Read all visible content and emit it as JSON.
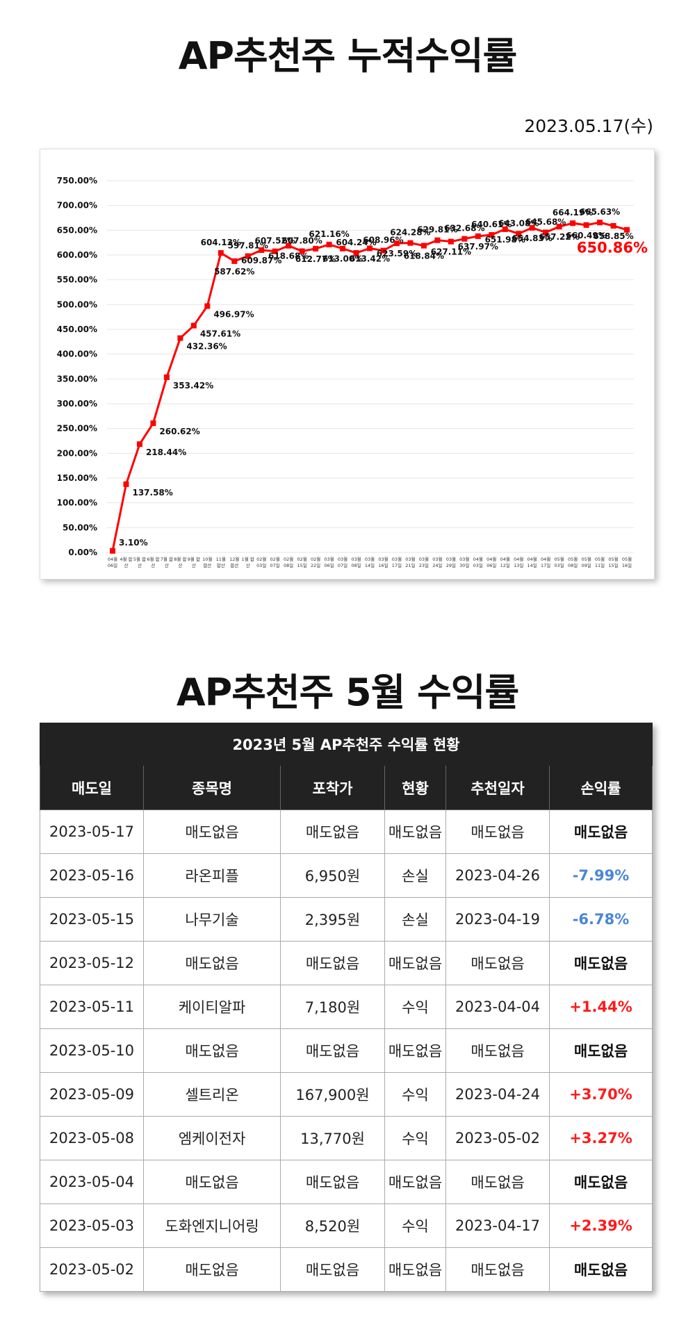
{
  "chart_data": {
    "type": "line",
    "title": "AP추천주 누적수익률",
    "subtitle": "2023.05.17(수)",
    "categories": [
      "04월 06일",
      "4월 합산",
      "5월 합산",
      "6월 합산",
      "7월 합산",
      "8월 합산",
      "9월 합산",
      "10월 합산",
      "11월 합산",
      "12월 합산",
      "1월 합산",
      "02월 03일",
      "02월 07일",
      "02월 08일",
      "02월 15일",
      "02월 22일",
      "03월 06일",
      "03월 07일",
      "03월 08일",
      "03월 14일",
      "03월 16일",
      "03월 17일",
      "03월 21일",
      "03월 23일",
      "03월 24일",
      "03월 29일",
      "03월 30일",
      "04월 03일",
      "04월 06일",
      "04월 12일",
      "04월 13일",
      "04월 14일",
      "04월 17일",
      "05월 03일",
      "05월 08일",
      "05월 09일",
      "05월 11일",
      "05월 15일",
      "05월 16일"
    ],
    "values": [
      3.1,
      137.58,
      218.44,
      260.62,
      353.42,
      432.36,
      457.61,
      496.97,
      604.13,
      587.62,
      597.81,
      609.87,
      607.52,
      618.68,
      607.8,
      612.77,
      621.16,
      613.0,
      604.24,
      613.42,
      608.96,
      623.59,
      624.28,
      618.84,
      629.81,
      627.11,
      632.68,
      637.97,
      640.61,
      651.98,
      643.08,
      654.83,
      645.68,
      657.22,
      664.19,
      660.49,
      665.63,
      658.85,
      650.86
    ],
    "value_labels": [
      "3.10%",
      "137.58%",
      "218.44%",
      "260.62%",
      "353.42%",
      "432.36%",
      "457.61%",
      "496.97%",
      "604.13%",
      "587.62%",
      "597.81%",
      "609.87%",
      "607.52%",
      "618.68%",
      "607.80%",
      "612.77%",
      "621.16%",
      "613.00%",
      "604.24%",
      "613.42%",
      "608.96%",
      "623.59%",
      "624.28%",
      "618.84%",
      "629.81%",
      "627.11%",
      "632.68%",
      "637.97%",
      "640.61%",
      "651.98%",
      "643.08%",
      "654.83%",
      "645.68%",
      "657.22%",
      "664.19%",
      "660.49%",
      "665.63%",
      "658.85%",
      "650.86%"
    ],
    "color": "#ff0000",
    "highlight_color": "#ff0000",
    "label_color": "#111111",
    "ylim": [
      0,
      750
    ],
    "yticks": [
      {
        "value": 0,
        "label": "0.00%"
      },
      {
        "value": 50,
        "label": "50.00%"
      },
      {
        "value": 100,
        "label": "100.00%"
      },
      {
        "value": 150,
        "label": "150.00%"
      },
      {
        "value": 200,
        "label": "200.00%"
      },
      {
        "value": 250,
        "label": "250.00%"
      },
      {
        "value": 300,
        "label": "300.00%"
      },
      {
        "value": 350,
        "label": "350.00%"
      },
      {
        "value": 400,
        "label": "400.00%"
      },
      {
        "value": 450,
        "label": "450.00%"
      },
      {
        "value": 500,
        "label": "500.00%"
      },
      {
        "value": 550,
        "label": "550.00%"
      },
      {
        "value": 600,
        "label": "600.00%"
      },
      {
        "value": 650,
        "label": "650.00%"
      },
      {
        "value": 700,
        "label": "700.00%"
      },
      {
        "value": 750,
        "label": "750.00%"
      }
    ],
    "grid": true
  },
  "table": {
    "heading": "AP추천주 5월 수익률",
    "title": "2023년 5월 AP추천주 수익률 현황",
    "columns": [
      "매도일",
      "종목명",
      "포착가",
      "현황",
      "추천일자",
      "손익률"
    ],
    "rows": [
      [
        "2023-05-17",
        "매도없음",
        "매도없음",
        "매도없음",
        "매도없음",
        "매도없음"
      ],
      [
        "2023-05-16",
        "라온피플",
        "6,950원",
        "손실",
        "2023-04-26",
        "-7.99%"
      ],
      [
        "2023-05-15",
        "나무기술",
        "2,395원",
        "손실",
        "2023-04-19",
        "-6.78%"
      ],
      [
        "2023-05-12",
        "매도없음",
        "매도없음",
        "매도없음",
        "매도없음",
        "매도없음"
      ],
      [
        "2023-05-11",
        "케이티알파",
        "7,180원",
        "수익",
        "2023-04-04",
        "+1.44%"
      ],
      [
        "2023-05-10",
        "매도없음",
        "매도없음",
        "매도없음",
        "매도없음",
        "매도없음"
      ],
      [
        "2023-05-09",
        "셀트리온",
        "167,900원",
        "수익",
        "2023-04-24",
        "+3.70%"
      ],
      [
        "2023-05-08",
        "엠케이전자",
        "13,770원",
        "수익",
        "2023-05-02",
        "+3.27%"
      ],
      [
        "2023-05-04",
        "매도없음",
        "매도없음",
        "매도없음",
        "매도없음",
        "매도없음"
      ],
      [
        "2023-05-03",
        "도화엔지니어링",
        "8,520원",
        "수익",
        "2023-04-17",
        "+2.39%"
      ],
      [
        "2023-05-02",
        "매도없음",
        "매도없음",
        "매도없음",
        "매도없음",
        "매도없음"
      ]
    ],
    "rate_colors": [
      "#111111",
      "#4a86d4",
      "#4a86d4",
      "#111111",
      "#ff1a1a",
      "#111111",
      "#ff1a1a",
      "#ff1a1a",
      "#111111",
      "#ff1a1a",
      "#111111"
    ]
  }
}
